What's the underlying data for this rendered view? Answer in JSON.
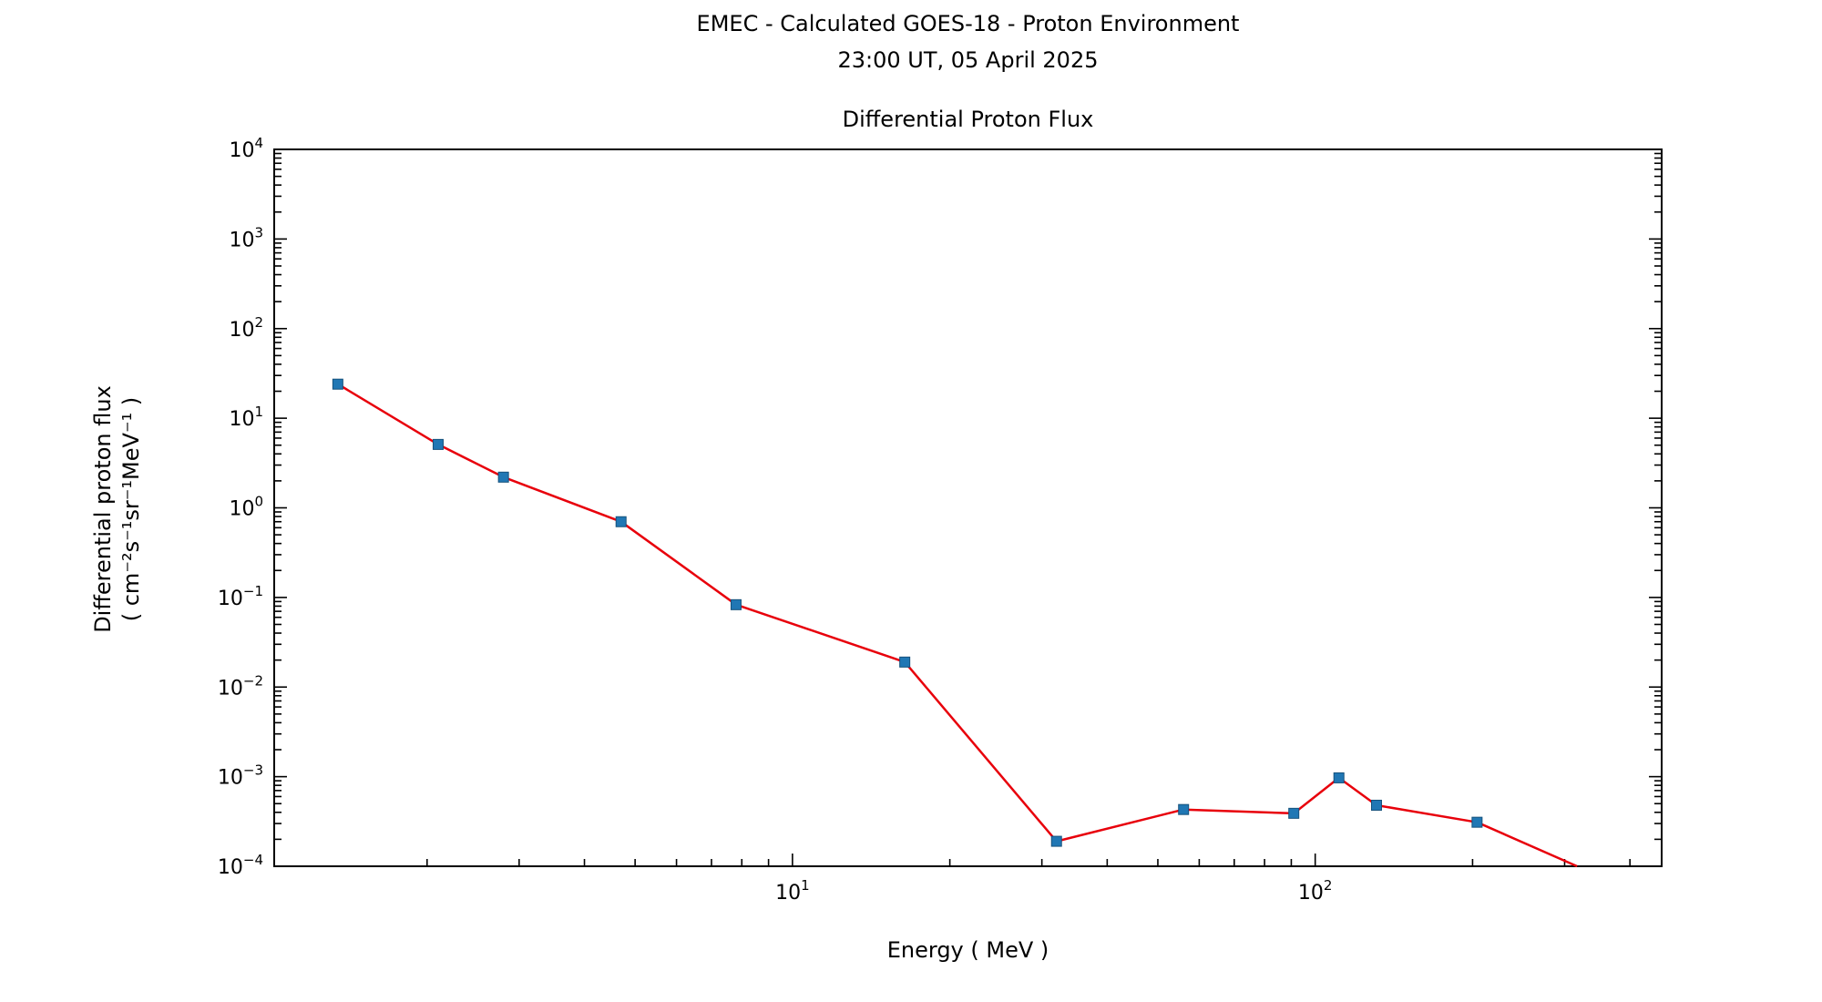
{
  "figure": {
    "title_line1": "EMEC - Calculated GOES-18 - Proton Environment",
    "title_line2": "23:00 UT, 05 April 2025",
    "background": "#ffffff"
  },
  "chart_data": {
    "type": "line",
    "title": "Differential Proton Flux",
    "xlabel": "Energy ( MeV )",
    "ylabel_line1": "Differential proton flux",
    "ylabel_line2": "( cm⁻²s⁻¹sr⁻¹MeV⁻¹ )",
    "x_scale": "log",
    "y_scale": "log",
    "xlim": [
      1.02,
      460
    ],
    "ylim": [
      0.0001,
      10000
    ],
    "grid": false,
    "legend": "none",
    "tick_direction": "in",
    "minor_ticks": true,
    "axis_color": "#000000",
    "x_ticks": [
      {
        "exp": 1,
        "label": "10¹"
      },
      {
        "exp": 2,
        "label": "10²"
      }
    ],
    "y_ticks": [
      {
        "exp": 4,
        "label": "10⁴"
      },
      {
        "exp": 3,
        "label": "10³"
      },
      {
        "exp": 2,
        "label": "10²"
      },
      {
        "exp": 1,
        "label": "10¹"
      },
      {
        "exp": 0,
        "label": "10⁰"
      },
      {
        "exp": -1,
        "label": "10⁻¹"
      },
      {
        "exp": -2,
        "label": "10⁻²"
      },
      {
        "exp": -3,
        "label": "10⁻³"
      },
      {
        "exp": -4,
        "label": "10⁻⁴"
      }
    ],
    "series": [
      {
        "name": "Differential proton flux",
        "line_color": "#e8000b",
        "marker": "square",
        "marker_color": "#2077b4",
        "marker_edge_color": "#16527c",
        "points": [
          {
            "energy_mev": 1.35,
            "flux": 24
          },
          {
            "energy_mev": 2.1,
            "flux": 5.1
          },
          {
            "energy_mev": 2.8,
            "flux": 2.2
          },
          {
            "energy_mev": 4.7,
            "flux": 0.7
          },
          {
            "energy_mev": 7.8,
            "flux": 0.083
          },
          {
            "energy_mev": 16.4,
            "flux": 0.019
          },
          {
            "energy_mev": 32,
            "flux": 0.00019
          },
          {
            "energy_mev": 56,
            "flux": 0.00043
          },
          {
            "energy_mev": 91,
            "flux": 0.00039
          },
          {
            "energy_mev": 111,
            "flux": 0.00097
          },
          {
            "energy_mev": 131,
            "flux": 0.00048
          },
          {
            "energy_mev": 204,
            "flux": 0.00031
          }
        ],
        "line_end_point": {
          "energy_mev": 317,
          "flux": 0.0001
        }
      }
    ]
  }
}
